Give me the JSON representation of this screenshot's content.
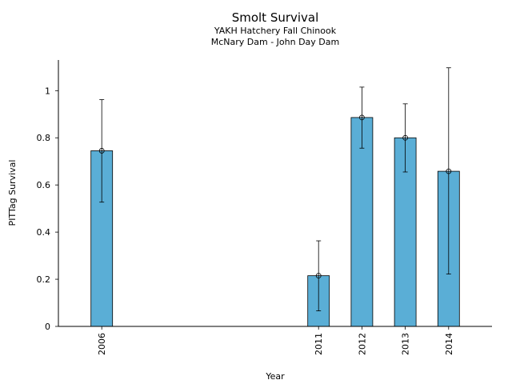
{
  "chart_data": {
    "type": "bar",
    "title": "Smolt Survival",
    "subtitle_lines": [
      "YAKH Hatchery Fall Chinook",
      "McNary Dam - John Day Dam"
    ],
    "xlabel": "Year",
    "ylabel": "PITTag Survival",
    "x_domain": [
      2005,
      2015
    ],
    "ylim": [
      0,
      1.13
    ],
    "yticks": [
      0,
      0.2,
      0.4,
      0.6,
      0.8,
      1
    ],
    "ytick_labels": [
      "0",
      "0.2",
      "0.4",
      "0.6",
      "0.8",
      "1"
    ],
    "categories": [
      "2006",
      "2011",
      "2012",
      "2013",
      "2014"
    ],
    "x": [
      2006,
      2011,
      2012,
      2013,
      2014
    ],
    "values": [
      0.745,
      0.215,
      0.886,
      0.8,
      0.658
    ],
    "error_low": [
      0.527,
      0.066,
      0.756,
      0.655,
      0.222
    ],
    "error_high": [
      0.962,
      0.363,
      1.015,
      0.944,
      1.097
    ],
    "bar_color": "#5aaed6",
    "grid": false,
    "legend": "none"
  }
}
